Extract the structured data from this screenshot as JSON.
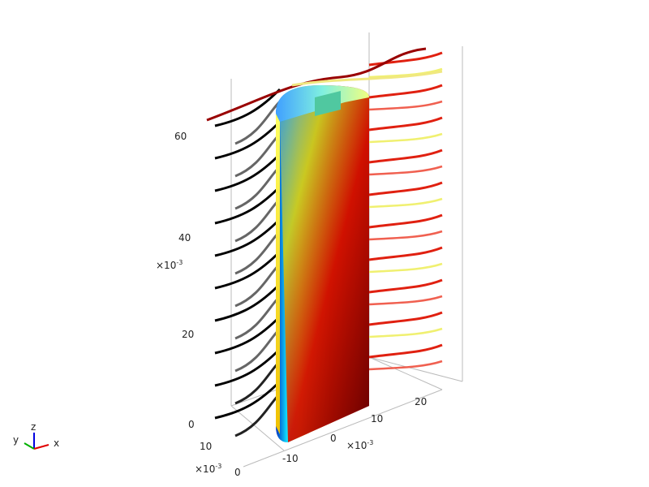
{
  "plot": {
    "z_axis": {
      "ticks": [
        "60",
        "40",
        "20",
        "0"
      ],
      "scale": {
        "base": "×10",
        "exponent": "-3"
      }
    },
    "y_axis": {
      "ticks": [
        "10",
        "0"
      ],
      "scale": {
        "base": "×10",
        "exponent": "-3"
      }
    },
    "x_axis": {
      "ticks": [
        "-10",
        "0",
        "10",
        "20"
      ],
      "scale": {
        "base": "×10",
        "exponent": "-3"
      }
    },
    "triad": {
      "z": "z",
      "y": "y",
      "x": "x"
    }
  }
}
